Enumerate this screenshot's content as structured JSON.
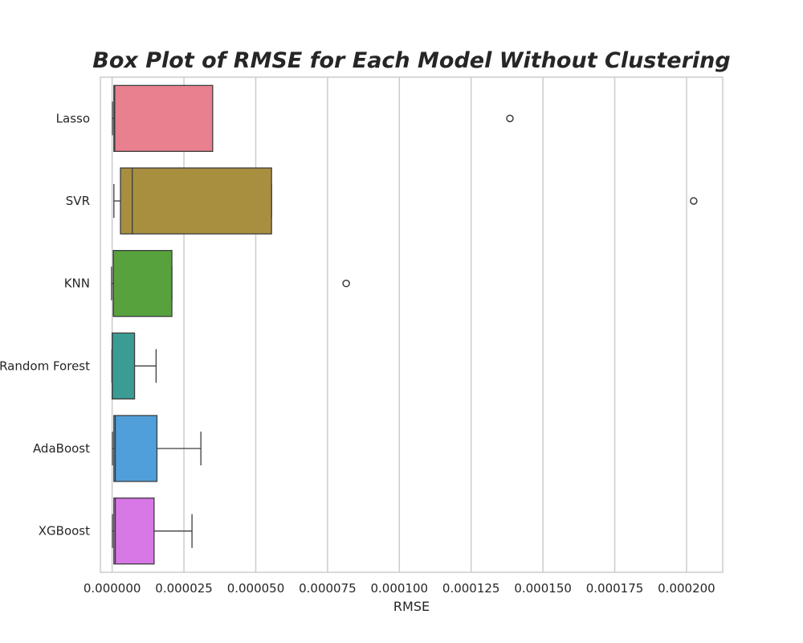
{
  "chart_data": {
    "type": "box",
    "orientation": "horizontal",
    "title": "Box Plot of RMSE for Each Model Without Clustering",
    "xlabel": "RMSE",
    "ylabel": "",
    "xlim": [
      -4.1e-06,
      0.0002126
    ],
    "xticks": [
      0.0,
      2.5e-05,
      5e-05,
      7.5e-05,
      0.0001,
      0.000125,
      0.00015,
      0.000175,
      0.0002
    ],
    "xtick_labels": [
      "0.000000",
      "0.000025",
      "0.000050",
      "0.000075",
      "0.000100",
      "0.000125",
      "0.000150",
      "0.000175",
      "0.000200"
    ],
    "grid": true,
    "categories": [
      "Lasso",
      "SVR",
      "KNN",
      "Random Forest",
      "AdaBoost",
      "XGBoost"
    ],
    "boxes": [
      {
        "name": "Lasso",
        "color": "#E8808F",
        "whisker_low": 1e-07,
        "q1": 6e-07,
        "median": 9e-07,
        "q3": 3.5e-05,
        "whisker_high": 3.5e-05,
        "outliers": [
          0.0001385
        ]
      },
      {
        "name": "SVR",
        "color": "#A88F40",
        "whisker_low": 6e-07,
        "q1": 2.9e-06,
        "median": 7e-06,
        "q3": 5.55e-05,
        "whisker_high": 5.55e-05,
        "outliers": [
          0.0002025
        ]
      },
      {
        "name": "KNN",
        "color": "#57A23C",
        "whisker_low": -2e-07,
        "q1": 4e-07,
        "median": 4e-07,
        "q3": 2.08e-05,
        "whisker_high": 2.08e-05,
        "outliers": [
          8.15e-05
        ]
      },
      {
        "name": "Random Forest",
        "color": "#3A9C93",
        "whisker_low": -1e-07,
        "q1": 0.0,
        "median": 0.0,
        "q3": 7.8e-06,
        "whisker_high": 1.53e-05,
        "outliers": []
      },
      {
        "name": "AdaBoost",
        "color": "#509FDA",
        "whisker_low": 1e-07,
        "q1": 6e-07,
        "median": 1.1e-06,
        "q3": 1.56e-05,
        "whisker_high": 3.09e-05,
        "outliers": []
      },
      {
        "name": "XGBoost",
        "color": "#D877E6",
        "whisker_low": 1e-07,
        "q1": 6e-07,
        "median": 1.1e-06,
        "q3": 1.46e-05,
        "whisker_high": 2.78e-05,
        "outliers": []
      }
    ]
  }
}
